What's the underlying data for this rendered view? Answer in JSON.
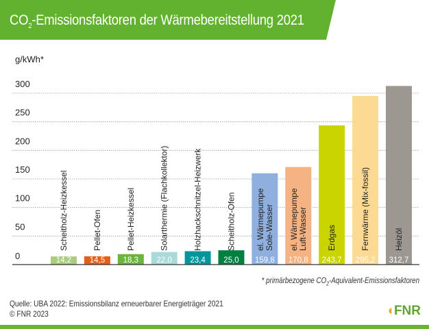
{
  "title_prefix": "CO",
  "title_sub": "2",
  "title_rest": "-Emissionsfaktoren der Wärmebereitstellung 2021",
  "footnote_prefix": "* primärbezogene CO",
  "footnote_sub": "2",
  "footnote_rest": "-Äquivalent-Emissionsfaktoren",
  "source": "Quelle: UBA 2022: Emissionsbilanz erneuerbarer Energieträger 2021",
  "copyright": "© FNR 2023",
  "logo": "FNR",
  "colors": {
    "banner": "#62b22f",
    "text_on_bar": "#ffffff"
  },
  "chart_data": {
    "type": "bar",
    "ylabel": "g/kWh*",
    "ylim": [
      0,
      300
    ],
    "yticks": [
      0,
      50,
      100,
      150,
      200,
      250,
      300
    ],
    "grid": true,
    "categories": [
      "Scheitholz-Heizkessel",
      "Pellet-Ofen",
      "Pellet-Heizkessel",
      "Solarthermie (Flachkollektor)",
      "Holzhackschnitzel-Heizwerk",
      "Scheitholz-Ofen",
      "el. Wärmepumpe\nSole-Wasser",
      "el. Wärmepumpe\nLuft-Wasser",
      "Erdgas",
      "Fernwärme (Mix-fossil)",
      "Heizöl"
    ],
    "values": [
      14.2,
      14.5,
      18.3,
      22.0,
      23.4,
      25.0,
      159.8,
      170.8,
      243.7,
      295.2,
      312.7
    ],
    "data_labels": [
      "14,2",
      "14,5",
      "18,3",
      "22,0",
      "23,4",
      "25,0",
      "159,8",
      "170,8",
      "243,7",
      "295,2",
      "312,7"
    ],
    "colors": [
      "#a9cd7c",
      "#e3601c",
      "#6cb33f",
      "#a9d9d9",
      "#00969b",
      "#008040",
      "#8fafdf",
      "#f5b283",
      "#c9d400",
      "#fdda93",
      "#9c9891"
    ]
  }
}
